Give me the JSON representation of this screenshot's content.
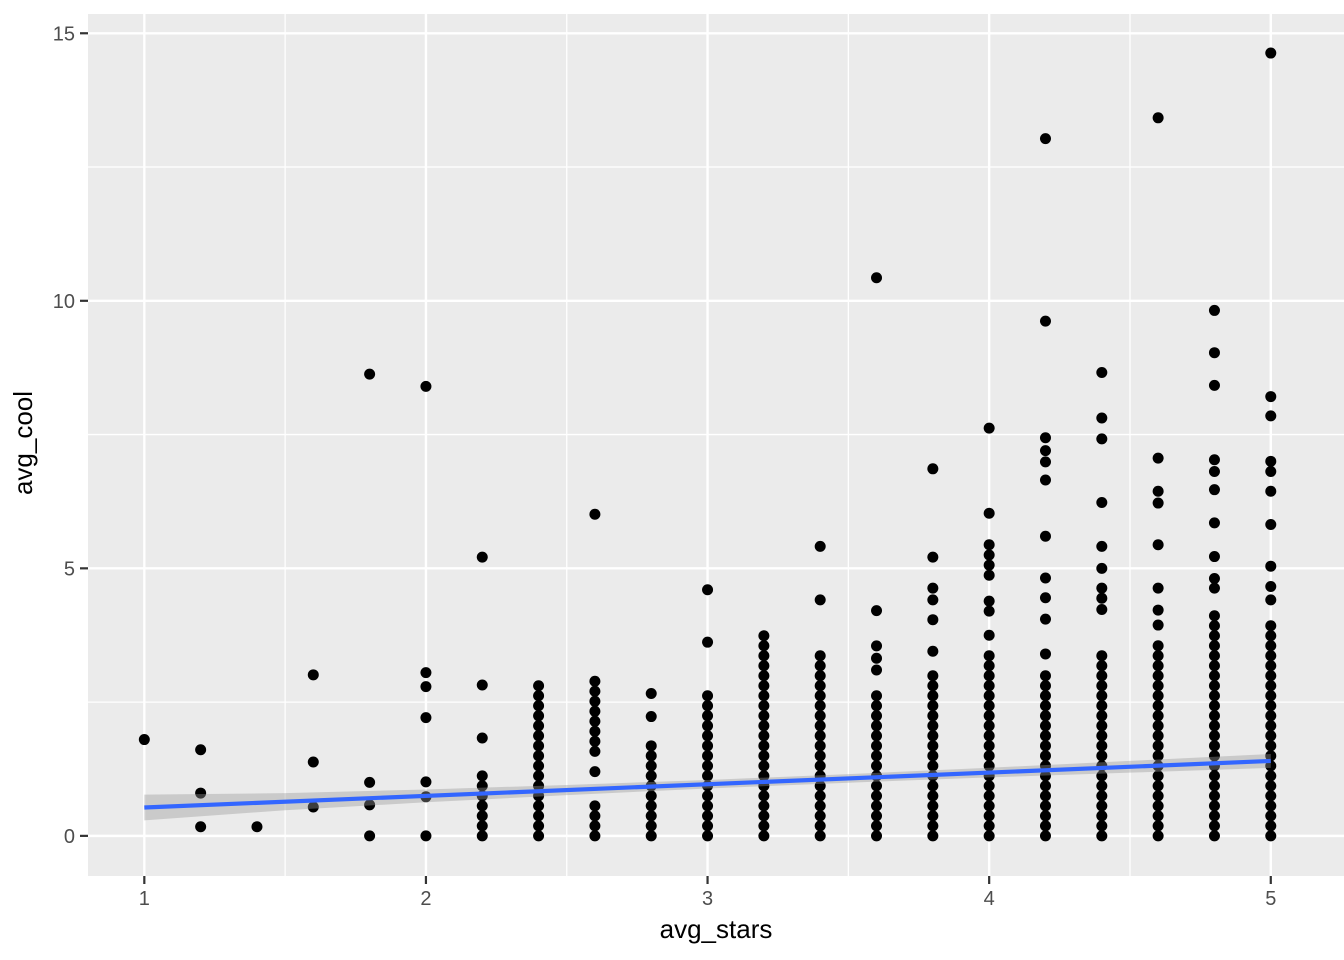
{
  "chart_data": {
    "type": "scatter",
    "title": "",
    "xlabel": "avg_stars",
    "ylabel": "avg_cool",
    "xlim": [
      0.8,
      5.26
    ],
    "ylim": [
      -0.75,
      15.36
    ],
    "x_ticks": [
      1,
      2,
      3,
      4,
      5
    ],
    "x_tick_labels": [
      "1",
      "2",
      "3",
      "4",
      "5"
    ],
    "y_ticks": [
      0,
      5,
      10,
      15
    ],
    "y_tick_labels": [
      "0",
      "5",
      "10",
      "15"
    ],
    "x_minor_ticks": [
      1.5,
      2.5,
      3.5,
      4.5
    ],
    "y_minor_ticks": [
      2.5,
      7.5,
      12.5
    ],
    "grid": true,
    "legend": "none",
    "colors": {
      "panel_bg": "#EBEBEB",
      "grid": "#FFFFFF",
      "point": "#000000",
      "smooth_line": "#3366FF",
      "band_fill": "#999999",
      "tick_text": "#4d4d4d",
      "tick_mark": "#333333"
    },
    "point_radius_px": 5.5,
    "stack_step": 0.187,
    "columns": [
      {
        "x": 1.0,
        "stacks": [],
        "extra": [
          1.8
        ]
      },
      {
        "x": 1.2,
        "stacks": [],
        "extra": [
          0.17,
          0.8,
          1.61
        ]
      },
      {
        "x": 1.4,
        "stacks": [],
        "extra": [
          0.17
        ]
      },
      {
        "x": 1.6,
        "stacks": [],
        "extra": [
          0.54,
          1.38,
          3.01
        ]
      },
      {
        "x": 1.8,
        "stacks": [],
        "extra": [
          0.0,
          0.58,
          1.0,
          8.63
        ]
      },
      {
        "x": 2.0,
        "stacks": [],
        "extra": [
          0.0,
          0.73,
          1.01,
          2.21,
          2.79,
          3.05,
          8.4
        ]
      },
      {
        "x": 2.2,
        "stacks": [
          [
            0,
            1.25
          ]
        ],
        "extra": [
          1.83,
          2.82,
          5.21
        ]
      },
      {
        "x": 2.4,
        "stacks": [
          [
            0,
            2.9
          ]
        ],
        "extra": []
      },
      {
        "x": 2.6,
        "stacks": [
          [
            0,
            0.65
          ],
          [
            1.58,
            2.89
          ]
        ],
        "extra": [
          1.2,
          6.01
        ]
      },
      {
        "x": 2.8,
        "stacks": [
          [
            0,
            1.86
          ]
        ],
        "extra": [
          2.23,
          2.66
        ]
      },
      {
        "x": 3.0,
        "stacks": [
          [
            0,
            2.64
          ]
        ],
        "extra": [
          3.62,
          4.6
        ]
      },
      {
        "x": 3.2,
        "stacks": [
          [
            0,
            3.85
          ]
        ],
        "extra": []
      },
      {
        "x": 3.4,
        "stacks": [
          [
            0,
            3.42
          ]
        ],
        "extra": [
          4.41,
          5.41
        ]
      },
      {
        "x": 3.6,
        "stacks": [
          [
            0,
            2.67
          ]
        ],
        "extra": [
          3.1,
          3.32,
          3.55,
          4.21,
          10.43
        ]
      },
      {
        "x": 3.8,
        "stacks": [
          [
            0,
            3.07
          ]
        ],
        "extra": [
          3.45,
          4.04,
          4.41,
          4.63,
          5.21,
          6.86
        ]
      },
      {
        "x": 4.0,
        "stacks": [
          [
            0,
            3.5
          ],
          [
            4.2,
            4.42
          ]
        ],
        "extra": [
          3.75,
          4.87,
          5.06,
          5.25,
          5.44,
          6.03,
          7.62
        ]
      },
      {
        "x": 4.2,
        "stacks": [
          [
            0,
            3.1
          ]
        ],
        "extra": [
          3.4,
          4.05,
          4.45,
          4.82,
          5.6,
          6.65,
          6.99,
          7.2,
          7.44,
          9.62,
          13.03
        ]
      },
      {
        "x": 4.4,
        "stacks": [
          [
            0,
            3.5
          ]
        ],
        "extra": [
          4.23,
          4.44,
          4.63,
          5.0,
          5.41,
          6.23,
          7.42,
          7.81,
          8.66
        ]
      },
      {
        "x": 4.6,
        "stacks": [
          [
            0,
            3.66
          ]
        ],
        "extra": [
          3.94,
          4.22,
          4.63,
          5.44,
          6.22,
          6.44,
          7.06,
          13.42
        ]
      },
      {
        "x": 4.8,
        "stacks": [
          [
            0,
            4.29
          ]
        ],
        "extra": [
          4.63,
          4.81,
          5.22,
          5.85,
          6.47,
          6.81,
          7.03,
          8.42,
          9.03,
          9.82
        ]
      },
      {
        "x": 5.0,
        "stacks": [
          [
            0,
            4.1
          ]
        ],
        "extra": [
          4.41,
          4.66,
          5.04,
          5.82,
          6.44,
          6.81,
          7.0,
          7.85,
          8.21,
          14.63
        ]
      }
    ],
    "smooth": {
      "method": "linear",
      "x": [
        1,
        5
      ],
      "y": [
        0.53,
        1.4
      ],
      "band": [
        [
          1.0,
          0.24
        ],
        [
          1.5,
          0.16
        ],
        [
          2.0,
          0.12
        ],
        [
          2.5,
          0.095
        ],
        [
          3.0,
          0.08
        ],
        [
          3.5,
          0.08
        ],
        [
          4.0,
          0.09
        ],
        [
          4.5,
          0.11
        ],
        [
          5.0,
          0.13
        ]
      ]
    }
  }
}
